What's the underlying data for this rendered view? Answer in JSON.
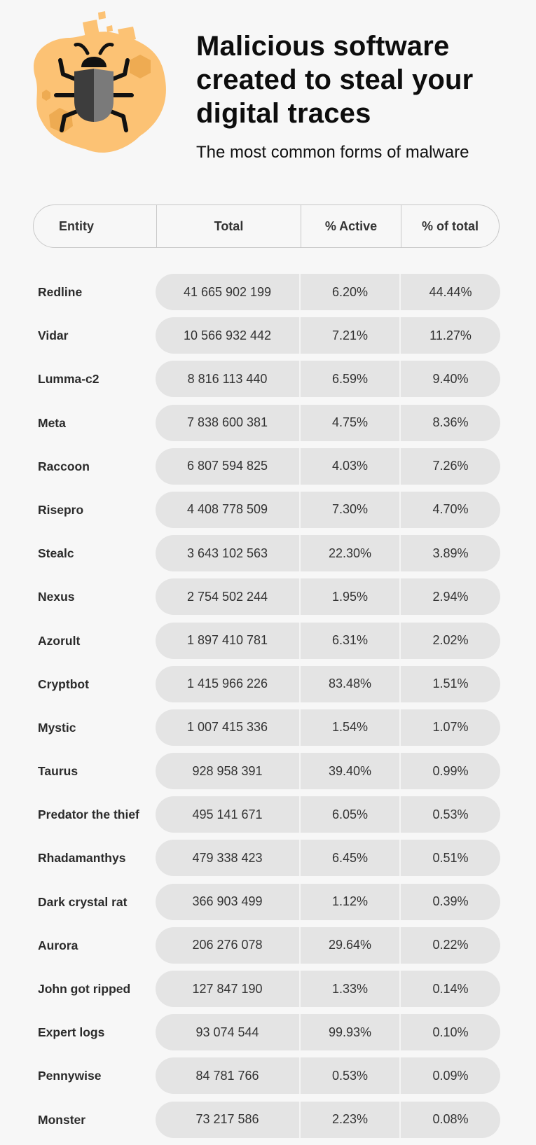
{
  "header": {
    "title": "Malicious software created to steal your digital traces",
    "subtitle": "The most common forms of malware",
    "icon": "bug-icon"
  },
  "colors": {
    "accent": "#fcc274",
    "accent_dark": "#eeab52",
    "pill": "#e4e4e4",
    "text": "#1a1a1a"
  },
  "table": {
    "columns": [
      "Entity",
      "Total",
      "% Active",
      "% of total"
    ],
    "rows": [
      {
        "entity": "Redline",
        "total": "41 665 902 199",
        "active": "6.20%",
        "share": "44.44%"
      },
      {
        "entity": "Vidar",
        "total": "10 566 932 442",
        "active": "7.21%",
        "share": "11.27%"
      },
      {
        "entity": "Lumma-c2",
        "total": "8 816 113 440",
        "active": "6.59%",
        "share": "9.40%"
      },
      {
        "entity": "Meta",
        "total": "7 838 600 381",
        "active": "4.75%",
        "share": "8.36%"
      },
      {
        "entity": "Raccoon",
        "total": "6 807 594 825",
        "active": "4.03%",
        "share": "7.26%"
      },
      {
        "entity": "Risepro",
        "total": "4 408 778 509",
        "active": "7.30%",
        "share": "4.70%"
      },
      {
        "entity": "Stealc",
        "total": "3 643 102 563",
        "active": "22.30%",
        "share": "3.89%"
      },
      {
        "entity": "Nexus",
        "total": "2 754 502 244",
        "active": "1.95%",
        "share": "2.94%"
      },
      {
        "entity": "Azorult",
        "total": "1 897 410 781",
        "active": "6.31%",
        "share": "2.02%"
      },
      {
        "entity": "Cryptbot",
        "total": "1 415 966 226",
        "active": "83.48%",
        "share": "1.51%"
      },
      {
        "entity": "Mystic",
        "total": "1 007 415 336",
        "active": "1.54%",
        "share": "1.07%"
      },
      {
        "entity": "Taurus",
        "total": "928 958 391",
        "active": "39.40%",
        "share": "0.99%"
      },
      {
        "entity": "Predator the thief",
        "total": "495 141 671",
        "active": "6.05%",
        "share": "0.53%"
      },
      {
        "entity": "Rhadamanthys",
        "total": "479 338 423",
        "active": "6.45%",
        "share": "0.51%"
      },
      {
        "entity": "Dark crystal rat",
        "total": "366 903 499",
        "active": "1.12%",
        "share": "0.39%"
      },
      {
        "entity": "Aurora",
        "total": "206 276 078",
        "active": "29.64%",
        "share": "0.22%"
      },
      {
        "entity": "John got ripped",
        "total": "127 847 190",
        "active": "1.33%",
        "share": "0.14%"
      },
      {
        "entity": "Expert logs",
        "total": "93 074 544",
        "active": "99.93%",
        "share": "0.10%"
      },
      {
        "entity": "Pennywise",
        "total": "84 781 766",
        "active": "0.53%",
        "share": "0.09%"
      },
      {
        "entity": "Monster",
        "total": "73 217 586",
        "active": "2.23%",
        "share": "0.08%"
      }
    ]
  }
}
